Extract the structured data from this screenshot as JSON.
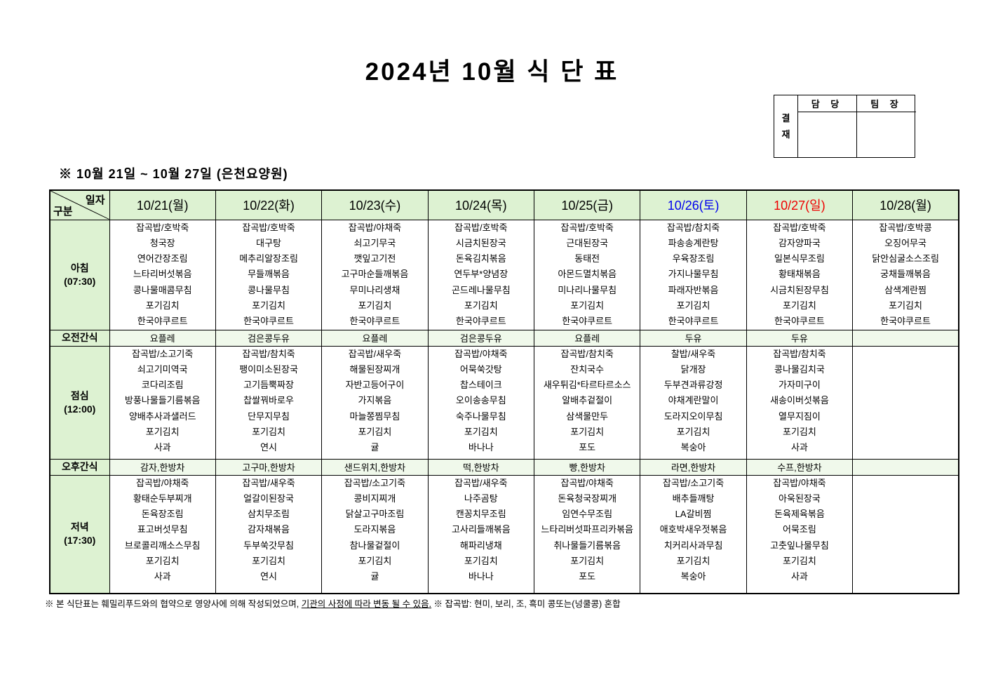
{
  "page_title": "2024년 10월 식 단 표",
  "approval": {
    "stamp_label_chars": [
      "결",
      "재"
    ],
    "columns": [
      "담 당",
      "팀 장"
    ]
  },
  "subtitle": "※  10월 21일 ~ 10월 27일 (은천요양원)",
  "colors": {
    "header_green": "#ddf2d2",
    "snack_green": "#f0f9eb",
    "saturday_blue": "#0000ee",
    "sunday_red": "#ee0000",
    "weekday_black": "#000000"
  },
  "table": {
    "corner": {
      "top_right": "일자",
      "bottom_left": "구분"
    },
    "date_headers": [
      {
        "label": "10/21(월)",
        "color": "#000000"
      },
      {
        "label": "10/22(화)",
        "color": "#000000"
      },
      {
        "label": "10/23(수)",
        "color": "#000000"
      },
      {
        "label": "10/24(목)",
        "color": "#000000"
      },
      {
        "label": "10/25(금)",
        "color": "#000000"
      },
      {
        "label": "10/26(토)",
        "color": "#0000ee"
      },
      {
        "label": "10/27(일)",
        "color": "#ee0000"
      },
      {
        "label": "10/28(월)",
        "color": "#000000"
      }
    ],
    "rows": [
      {
        "id": "breakfast",
        "label_lines": [
          "아침",
          "(07:30)"
        ],
        "kind": "meal",
        "cells": [
          [
            "잡곡밥/호박죽",
            "청국장",
            "연어간장조림",
            "느타리버섯볶음",
            "콩나물매콤무침",
            "포기김치",
            "한국야쿠르트"
          ],
          [
            "잡곡밥/호박죽",
            "대구탕",
            "메추리알장조림",
            "무들깨볶음",
            "콩나물무침",
            "포기김치",
            "한국야쿠르트"
          ],
          [
            "잡곡밥/야채죽",
            "쇠고기무국",
            "깻잎고기전",
            "고구마순들깨볶음",
            "무미나리생채",
            "포기김치",
            "한국야쿠르트"
          ],
          [
            "잡곡밥/호박죽",
            "시금치된장국",
            "돈육김치볶음",
            "연두부*양념장",
            "곤드레나물무침",
            "포기김치",
            "한국야쿠르트"
          ],
          [
            "잡곡밥/호박죽",
            "근대된장국",
            "동태전",
            "아몬드멸치볶음",
            "미나리나물무침",
            "포기김치",
            "한국야쿠르트"
          ],
          [
            "잡곡밥/참치죽",
            "파송송계란탕",
            "우육장조림",
            "가지나물무침",
            "파래자반볶음",
            "포기김치",
            "한국야쿠르트"
          ],
          [
            "잡곡밥/호박죽",
            "감자양파국",
            "일본식무조림",
            "황태채볶음",
            "시금치된장무침",
            "포기김치",
            "한국야쿠르트"
          ],
          [
            "잡곡밥/호박콩",
            "오징어무국",
            "닭안심굴소스조림",
            "궁채들깨볶음",
            "삼색계란찜",
            "포기김치",
            "한국야쿠르트"
          ]
        ]
      },
      {
        "id": "am-snack",
        "label_lines": [
          "오전간식"
        ],
        "kind": "snack",
        "cells": [
          "요플레",
          "검은콩두유",
          "요플레",
          "검은콩두유",
          "요플레",
          "두유",
          "두유",
          ""
        ]
      },
      {
        "id": "lunch",
        "label_lines": [
          "점심",
          "(12:00)"
        ],
        "kind": "meal",
        "cells": [
          [
            "잡곡밥/소고기죽",
            "쇠고기미역국",
            "코다리조림",
            "방풍나물들기름볶음",
            "양배추사과샐러드",
            "포기김치",
            "사과"
          ],
          [
            "잡곡밥/참치죽",
            "팽이미소된장국",
            "고기듬뿍짜장",
            "찹쌀꿔바로우",
            "단무지무침",
            "포기김치",
            "연시"
          ],
          [
            "잡곡밥/새우죽",
            "해물된장찌개",
            "자반고등어구이",
            "가지볶음",
            "마늘쫑찜무침",
            "포기김치",
            "귤"
          ],
          [
            "잡곡밥/야채죽",
            "어묵쑥갓탕",
            "찹스테이크",
            "오이송송무침",
            "숙주나물무침",
            "포기김치",
            "바나나"
          ],
          [
            "잡곡밥/참치죽",
            "잔치국수",
            "새우튀김*타르타르소스",
            "알배추겉절이",
            "삼색물만두",
            "포기김치",
            "포도"
          ],
          [
            "찰밥/새우죽",
            "닭개장",
            "두부견과류강정",
            "야채계란말이",
            "도라지오이무침",
            "포기김치",
            "복숭아"
          ],
          [
            "잡곡밥/참치죽",
            "콩나물김치국",
            "가자미구이",
            "새송이버섯볶음",
            "열무지짐이",
            "포기김치",
            "사과"
          ],
          []
        ]
      },
      {
        "id": "pm-snack",
        "label_lines": [
          "오후간식"
        ],
        "kind": "snack",
        "cells": [
          "감자,한방차",
          "고구마,한방차",
          "샌드위치,한방차",
          "떡,한방차",
          "빵,한방차",
          "라면,한방차",
          "수프,한방차",
          ""
        ]
      },
      {
        "id": "dinner",
        "label_lines": [
          "저녁",
          "(17:30)"
        ],
        "kind": "meal",
        "cells": [
          [
            "잡곡밥/야채죽",
            "황태순두부찌개",
            "돈육장조림",
            "표고버섯무침",
            "브로콜리깨소스무침",
            "포기김치",
            "사과"
          ],
          [
            "잡곡밥/새우죽",
            "얼갈이된장국",
            "삼치무조림",
            "감자채볶음",
            "두부쑥갓무침",
            "포기김치",
            "연시"
          ],
          [
            "잡곡밥/소고기죽",
            "콩비지찌개",
            "닭살고구마조림",
            "도라지볶음",
            "참나물겉절이",
            "포기김치",
            "귤"
          ],
          [
            "잡곡밥/새우죽",
            "나주곰탕",
            "캔꽁치무조림",
            "고사리들깨볶음",
            "해파리냉채",
            "포기김치",
            "바나나"
          ],
          [
            "잡곡밥/야채죽",
            "돈육청국장찌개",
            "임연수무조림",
            "느타리버섯파프리카볶음",
            "취나물들기름볶음",
            "포기김치",
            "포도"
          ],
          [
            "잡곡밥/소고기죽",
            "배추들깨탕",
            "LA갈비찜",
            "애호박새우젓볶음",
            "치커리사과무침",
            "포기김치",
            "복숭아"
          ],
          [
            "잡곡밥/야채죽",
            "아욱된장국",
            "돈육제육볶음",
            "어묵조림",
            "고춧잎나물무침",
            "포기김치",
            "사과"
          ],
          []
        ]
      }
    ]
  },
  "footer": {
    "part1": "※  본 식단표는 훼밀리푸드와의 협약으로 영양사에 의해 작성되었으며, ",
    "underlined": "기관의 사정에 따라 변동 될 수 있음.",
    "part2": " ※ 잡곡밥: 현미, 보리, 조, 흑미 콩또는(넝쿨콩) 혼합"
  }
}
